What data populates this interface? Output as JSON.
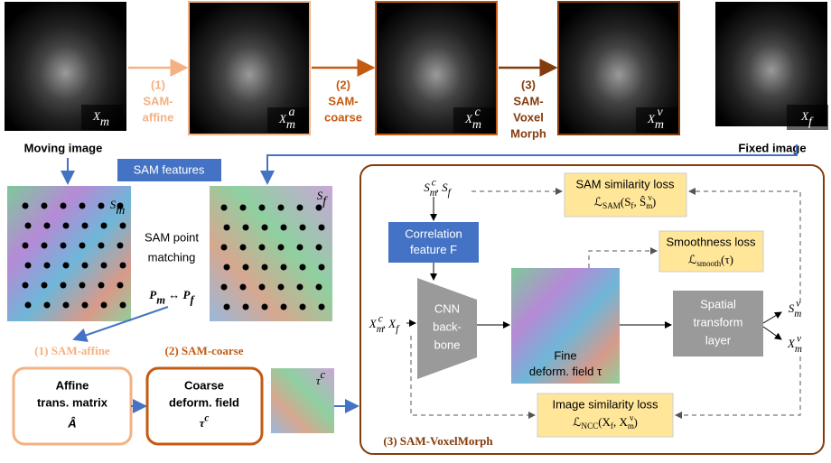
{
  "top_images": [
    {
      "label": [
        {
          "text": "X"
        },
        {
          "sub": "m"
        }
      ]
    },
    {
      "label": [
        {
          "text": "X"
        },
        {
          "sub": "m"
        },
        {
          "sup": "a"
        }
      ]
    },
    {
      "label": [
        {
          "text": "X"
        },
        {
          "sub": "m"
        },
        {
          "sup": "c"
        }
      ]
    },
    {
      "label": [
        {
          "text": "X"
        },
        {
          "sub": "m"
        },
        {
          "sup": "v"
        }
      ]
    },
    {
      "label": [
        {
          "text": "X"
        },
        {
          "sub": "f"
        }
      ]
    }
  ],
  "steps": [
    [
      "(1)",
      "SAM-",
      "affine"
    ],
    [
      "(2)",
      "SAM-",
      "coarse"
    ],
    [
      "(3)",
      "SAM-",
      "Voxel",
      "Morph"
    ]
  ],
  "moving_caption": "Moving image",
  "fixed_caption": "Fixed image",
  "sam_features": "SAM features",
  "feature_maps": [
    {
      "label": [
        {
          "text": "S"
        },
        {
          "sub": "m"
        }
      ]
    },
    {
      "label": [
        {
          "text": "S"
        },
        {
          "sub": "f"
        }
      ]
    }
  ],
  "matching": [
    "SAM point",
    "matching"
  ],
  "correspondence": [
    {
      "text": "P"
    },
    {
      "sub": "m"
    },
    {
      "text": " ↔ "
    },
    {
      "text": "P"
    },
    {
      "sub": "f"
    }
  ],
  "stage1": {
    "title": "(1) SAM-affine",
    "box": [
      "Affine",
      "trans. matrix"
    ],
    "symbol": "Â"
  },
  "stage2": {
    "title": "(2) SAM-coarse",
    "box": [
      "Coarse",
      "deform. field"
    ],
    "symbol": [
      {
        "text": "τ"
      },
      {
        "sup": "c"
      }
    ]
  },
  "coarse_field_label": [
    {
      "text": "τ"
    },
    {
      "sup": "c"
    }
  ],
  "voxelmorph": {
    "title": "(3) SAM-VoxelMorph",
    "seg_input": [
      {
        "text": "S"
      },
      {
        "sub": "m"
      },
      {
        "sup": "c"
      },
      {
        "text": ", S"
      },
      {
        "sub": "f"
      }
    ],
    "img_input": [
      {
        "text": "X"
      },
      {
        "sub": "m"
      },
      {
        "sup": "c"
      },
      {
        "text": ", X"
      },
      {
        "sub": "f"
      }
    ],
    "correlation": [
      "Correlation",
      [
        {
          "text": "feature "
        },
        {
          "text": "F"
        }
      ]
    ],
    "cnn": [
      "CNN",
      "back-",
      "bone"
    ],
    "field": [
      "Fine",
      [
        {
          "text": "deform. field τ"
        }
      ]
    ],
    "spatial": [
      "Spatial",
      "transform",
      "layer"
    ],
    "out_seg": [
      {
        "text": "S"
      },
      {
        "sub": "m"
      },
      {
        "sup": "v"
      }
    ],
    "out_img": [
      {
        "text": "X"
      },
      {
        "sub": "m"
      },
      {
        "sup": "v"
      }
    ],
    "sam_loss": {
      "name": "SAM similarity loss",
      "formula": [
        {
          "text": "ℒ"
        },
        {
          "sub": "SAM"
        },
        {
          "text": "(S"
        },
        {
          "sub": "f"
        },
        {
          "text": ", Ŝ"
        },
        {
          "sub": "m"
        },
        {
          "sup": "v"
        },
        {
          "text": ")"
        }
      ]
    },
    "smooth_loss": {
      "name": "Smoothness loss",
      "formula": [
        {
          "text": "ℒ"
        },
        {
          "sub": "smooth"
        },
        {
          "text": "(τ)"
        }
      ]
    },
    "image_loss": {
      "name": "Image similarity loss",
      "formula": [
        {
          "text": "ℒ"
        },
        {
          "sub": "NCC"
        },
        {
          "text": "(X"
        },
        {
          "sub": "f"
        },
        {
          "text": ", X"
        },
        {
          "sub": "m"
        },
        {
          "sup": "v"
        },
        {
          "text": ")"
        }
      ]
    }
  }
}
